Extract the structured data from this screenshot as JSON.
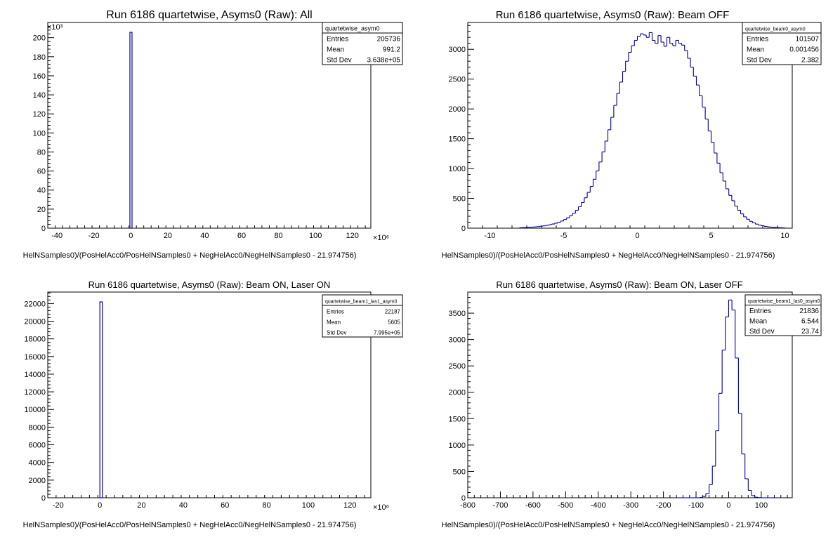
{
  "chart_data": [
    {
      "type": "histogram",
      "title": "Run 6186 quartetwise, Asyms0 (Raw): All",
      "xlabel": "HelNSamples0)/(PosHelAcc0/PosHelNSamples0 + NegHelAcc0/NegHelNSamples0 - 21.974756)",
      "x_multiplier": "×10⁶",
      "y_multiplier": "×10³",
      "xlim": [
        -45,
        130
      ],
      "ylim": [
        0,
        216
      ],
      "xticks": [
        -40,
        -20,
        0,
        20,
        40,
        60,
        80,
        100,
        120
      ],
      "yticks": [
        0,
        20,
        40,
        60,
        80,
        100,
        120,
        140,
        160,
        180,
        200
      ],
      "bins": [
        {
          "x0": -0.5,
          "x1": 0.5,
          "value": 205.7
        }
      ],
      "stats": {
        "name": "quartetwise_asym0",
        "entries": "205736",
        "mean": "991.2",
        "std_dev": "3.638e+05"
      }
    },
    {
      "type": "histogram",
      "title": "Run 6186 quartetwise, Asyms0 (Raw): Beam OFF",
      "xlabel": "HelNSamples0)/(PosHelAcc0/PosHelNSamples0 + NegHelAcc0/NegHelNSamples0 - 21.974756)",
      "x_multiplier": "",
      "y_multiplier": "",
      "xlim": [
        -11.5,
        10.5
      ],
      "ylim": [
        0,
        3450
      ],
      "xticks": [
        -10,
        -5,
        0,
        5,
        10
      ],
      "yticks": [
        0,
        500,
        1000,
        1500,
        2000,
        2500,
        3000
      ],
      "step_x0": -8,
      "step_width": 0.2,
      "step_values": [
        8,
        10,
        12,
        15,
        18,
        22,
        27,
        33,
        40,
        48,
        58,
        70,
        84,
        100,
        120,
        145,
        175,
        210,
        250,
        300,
        360,
        430,
        510,
        600,
        700,
        820,
        960,
        1110,
        1280,
        1460,
        1650,
        1860,
        2060,
        2260,
        2450,
        2630,
        2800,
        2950,
        3060,
        3150,
        3220,
        3260,
        3240,
        3200,
        3280,
        3150,
        3100,
        3230,
        3120,
        3050,
        3200,
        3100,
        3060,
        3150,
        3100,
        3070,
        2980,
        2850,
        2700,
        2550,
        2400,
        2220,
        2030,
        1830,
        1630,
        1440,
        1260,
        1090,
        930,
        790,
        660,
        550,
        460,
        370,
        300,
        240,
        190,
        150,
        115,
        90,
        68,
        52,
        40,
        30,
        22,
        17,
        13,
        10,
        8,
        6
      ]
    },
    {
      "type": "histogram",
      "title": "Run 6186 quartetwise, Asyms0 (Raw): Beam ON, Laser ON",
      "xlabel": "HelNSamples0)/(PosHelAcc0/PosHelNSamples0 + NegHelAcc0/NegHelNSamples0 - 21.974756)",
      "x_multiplier": "×10⁶",
      "y_multiplier": "",
      "xlim": [
        -25,
        130
      ],
      "ylim": [
        0,
        23300
      ],
      "xticks": [
        -20,
        0,
        20,
        40,
        60,
        80,
        100,
        120
      ],
      "yticks": [
        0,
        2000,
        4000,
        6000,
        8000,
        10000,
        12000,
        14000,
        16000,
        18000,
        20000,
        22000
      ],
      "bins": [
        {
          "x0": 0.0,
          "x1": 1.2,
          "value": 22187
        }
      ],
      "stats": {
        "name": "quartetwise_beam1_las1_asym0",
        "entries": "22187",
        "mean": "5605",
        "std_dev": "7.995e+05"
      }
    },
    {
      "type": "histogram",
      "title": "Run 6186 quartetwise, Asyms0 (Raw): Beam ON, Laser OFF",
      "xlabel": "HelNSamples0)/(PosHelAcc0/PosHelNSamples0 + NegHelAcc0/NegHelNSamples0 - 21.974756)",
      "x_multiplier": "",
      "y_multiplier": "",
      "xlim": [
        -800,
        195
      ],
      "ylim": [
        0,
        3900
      ],
      "xticks": [
        -800,
        -700,
        -600,
        -500,
        -400,
        -300,
        -200,
        -100,
        0,
        100
      ],
      "yticks": [
        0,
        500,
        1000,
        1500,
        2000,
        2500,
        3000,
        3500
      ],
      "step_x0": -150,
      "step_width": 10,
      "step_values": [
        0,
        0,
        0,
        0,
        0,
        0,
        5,
        25,
        80,
        250,
        600,
        1270,
        1980,
        2800,
        3430,
        3750,
        3560,
        2650,
        1600,
        830,
        360,
        140,
        40,
        10,
        3,
        0,
        0,
        0,
        0,
        0
      ],
      "stats": {
        "name": "quartetwise_beam1_las0_asym0",
        "entries": "21836",
        "mean": "6.544",
        "std_dev": "23.74"
      }
    }
  ],
  "stat_labels": {
    "entries": "Entries",
    "mean": "Mean",
    "std_dev": "Std Dev"
  },
  "beam_off_stats": {
    "name": "quartetwise_beam0_asym0",
    "entries": "101507",
    "mean": "0.001456",
    "std_dev": "2.382"
  }
}
